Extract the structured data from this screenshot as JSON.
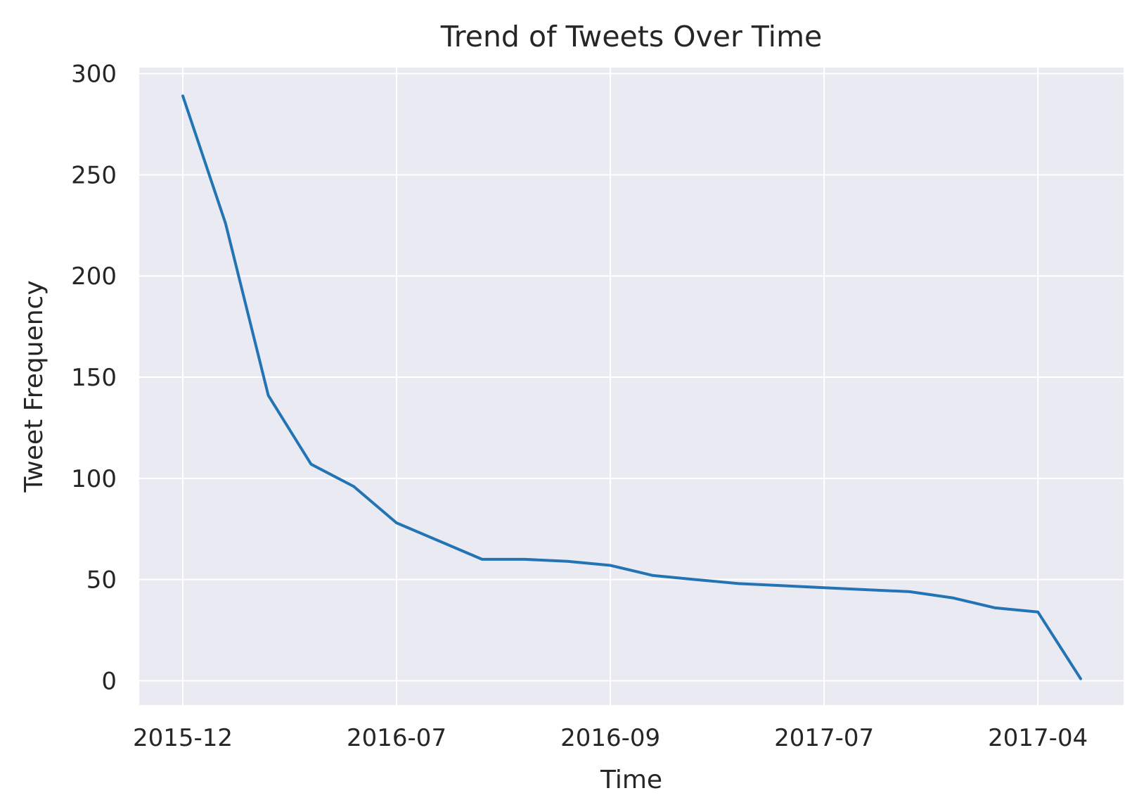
{
  "chart_data": {
    "type": "line",
    "title": "Trend of Tweets Over Time",
    "xlabel": "Time",
    "ylabel": "Tweet Frequency",
    "x_tick_labels": [
      "2015-12",
      "2016-07",
      "2016-09",
      "2017-07",
      "2017-04"
    ],
    "y_ticks": [
      0,
      50,
      100,
      150,
      200,
      250,
      300
    ],
    "ylim": [
      -12,
      303
    ],
    "grid": true,
    "legend": "none",
    "series": [
      {
        "values": [
          289,
          226,
          141,
          107,
          96,
          78,
          69,
          60,
          60,
          59,
          57,
          52,
          50,
          48,
          47,
          46,
          45,
          44,
          41,
          36,
          34,
          1
        ]
      }
    ],
    "colors": {
      "background": "#EAEAF2",
      "line": "#2274B4",
      "grid": "#FFFFFF",
      "text": "#262626"
    }
  }
}
